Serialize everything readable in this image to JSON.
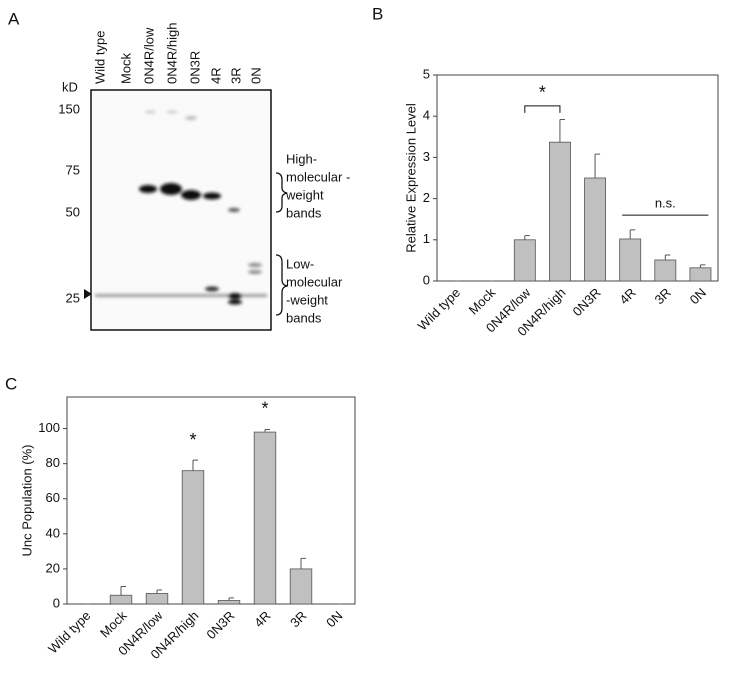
{
  "panel_labels": [
    "A",
    "B",
    "C"
  ],
  "blot": {
    "lanes": [
      "Wild type",
      "Mock",
      "0N4R/low",
      "0N4R/high",
      "0N3R",
      "4R",
      "3R",
      "0N"
    ],
    "unit": "kD",
    "markers": [
      150,
      75,
      50,
      25
    ],
    "high_label": [
      "High-",
      "molecular -",
      "weight",
      "bands"
    ],
    "low_label": [
      "Low-",
      "molecular",
      "-weight",
      "bands"
    ]
  },
  "chart_data": [
    {
      "type": "bar",
      "y_label": "Relative Expression Level",
      "categories": [
        "Wild type",
        "Mock",
        "0N4R/low",
        "0N4R/high",
        "0N3R",
        "4R",
        "3R",
        "0N"
      ],
      "values": [
        0,
        0,
        1.0,
        3.37,
        2.5,
        1.02,
        0.51,
        0.32
      ],
      "errors": [
        0,
        0,
        0.1,
        0.55,
        0.58,
        0.22,
        0.12,
        0.07
      ],
      "color": "#c0c0c0",
      "ylim": [
        0,
        5
      ],
      "yticks": [
        0,
        1,
        2,
        3,
        4,
        5
      ],
      "annotations": [
        "*",
        "n.s."
      ]
    },
    {
      "type": "bar",
      "y_label": "Unc Population (%)",
      "categories": [
        "Wild type",
        "Mock",
        "0N4R/low",
        "0N4R/high",
        "0N3R",
        "4R",
        "3R",
        "0N"
      ],
      "values": [
        0,
        5,
        6,
        76,
        2,
        98,
        20,
        0
      ],
      "errors": [
        0,
        5,
        2,
        6,
        1.5,
        1.5,
        6,
        0
      ],
      "color": "#c0c0c0",
      "ylim": [
        0,
        118
      ],
      "yticks": [
        0,
        20,
        40,
        60,
        80,
        100
      ],
      "annotations": [
        "*",
        "*"
      ]
    }
  ]
}
